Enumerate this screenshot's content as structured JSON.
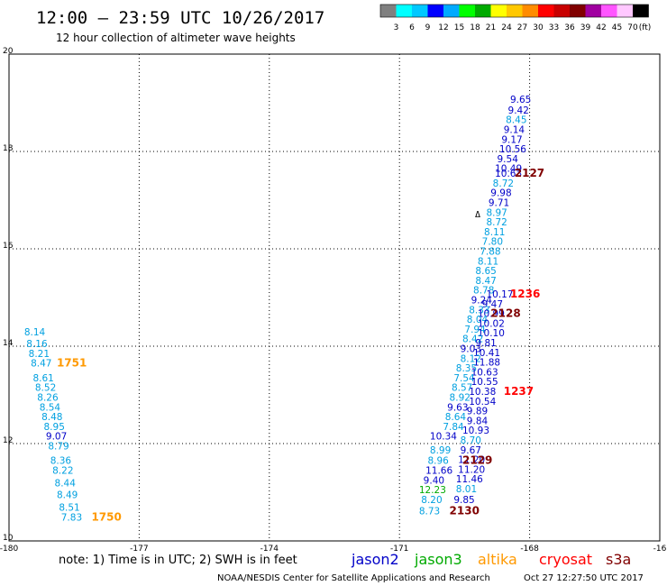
{
  "header": {
    "title": "12:00 – 23:59 UTC 10/26/2017",
    "subtitle": "12 hour collection of altimeter wave heights"
  },
  "color_scale": {
    "colors": [
      "#808080",
      "#00ffff",
      "#00c8ff",
      "#0000ff",
      "#00aaff",
      "#00ff00",
      "#00aa00",
      "#ffff00",
      "#ffc800",
      "#ff8c00",
      "#ff0000",
      "#c80000",
      "#800000",
      "#a000a0",
      "#ff55ff",
      "#ffc8ff",
      "#000000"
    ],
    "labels": [
      "3",
      "6",
      "9",
      "12",
      "15",
      "18",
      "21",
      "24",
      "27",
      "30",
      "33",
      "36",
      "39",
      "42",
      "45",
      "70"
    ],
    "unit": "(ft)"
  },
  "footer": {
    "note": "note: 1) Time is in UTC; 2) SWH is in feet",
    "credit": "NOAA/NESDIS Center for Satellite Applications and Research",
    "timestamp": "Oct 27 12:27:50 UTC 2017",
    "satellites": [
      {
        "name": "jason2",
        "color": "#0000c8"
      },
      {
        "name": "jason3",
        "color": "#00aa00"
      },
      {
        "name": "altika",
        "color": "#ff9900"
      },
      {
        "name": "cryosat",
        "color": "#ff0000"
      },
      {
        "name": "s3a",
        "color": "#800000"
      }
    ]
  },
  "chart_data": {
    "type": "scatter",
    "title": "12:00 – 23:59 UTC 10/26/2017",
    "subtitle": "12 hour collection of altimeter wave heights",
    "xlim": [
      -180,
      -165
    ],
    "ylim": [
      10,
      20
    ],
    "xticks": [
      "-180",
      "-177",
      "-174",
      "-171",
      "-168",
      "-16"
    ],
    "yticks": [
      "10",
      "12",
      "14",
      "16",
      "18",
      "20"
    ],
    "grid": true,
    "series": [
      {
        "name": "jason2",
        "color": "#0000c8",
        "points": [
          {
            "x": -168.45,
            "y": 19.0,
            "label": "9.65"
          },
          {
            "x": -168.5,
            "y": 18.78,
            "label": "9.42"
          },
          {
            "x": -168.55,
            "y": 18.58,
            "label": "8.45"
          },
          {
            "x": -168.6,
            "y": 18.38,
            "label": "9.14"
          },
          {
            "x": -168.65,
            "y": 18.18,
            "label": "9.17"
          },
          {
            "x": -168.7,
            "y": 17.98,
            "label": "10.56"
          },
          {
            "x": -168.75,
            "y": 17.78,
            "label": "9.54"
          },
          {
            "x": -168.8,
            "y": 17.58,
            "label": "10.49"
          },
          {
            "x": -168.8,
            "y": 17.48,
            "label": "10.63"
          },
          {
            "x": -168.85,
            "y": 17.28,
            "label": "8.72"
          },
          {
            "x": -168.9,
            "y": 17.08,
            "label": "9.98"
          },
          {
            "x": -168.95,
            "y": 16.88,
            "label": "9.71"
          },
          {
            "x": -169.0,
            "y": 16.68,
            "label": "8.97"
          },
          {
            "x": -169.0,
            "y": 16.48,
            "label": "8.72"
          },
          {
            "x": -169.05,
            "y": 16.28,
            "label": "8.11"
          },
          {
            "x": -169.1,
            "y": 16.08,
            "label": "7.80"
          },
          {
            "x": -169.15,
            "y": 15.88,
            "label": "7.88"
          },
          {
            "x": -169.2,
            "y": 15.68,
            "label": "8.11"
          },
          {
            "x": -169.25,
            "y": 15.48,
            "label": "8.65"
          },
          {
            "x": -169.25,
            "y": 15.28,
            "label": "8.47"
          },
          {
            "x": -169.3,
            "y": 15.08,
            "label": "8.78"
          },
          {
            "x": -169.0,
            "y": 15.0,
            "label": "10.17"
          },
          {
            "x": -169.35,
            "y": 14.88,
            "label": "9.24"
          },
          {
            "x": -169.1,
            "y": 14.8,
            "label": "9.47"
          },
          {
            "x": -169.4,
            "y": 14.68,
            "label": "8.33"
          },
          {
            "x": -169.2,
            "y": 14.6,
            "label": "10.99"
          },
          {
            "x": -169.45,
            "y": 14.48,
            "label": "8.04"
          },
          {
            "x": -169.2,
            "y": 14.4,
            "label": "10.02"
          },
          {
            "x": -169.5,
            "y": 14.28,
            "label": "7.94"
          },
          {
            "x": -169.2,
            "y": 14.2,
            "label": "10.10"
          },
          {
            "x": -169.55,
            "y": 14.08,
            "label": "8.42"
          },
          {
            "x": -169.25,
            "y": 14.0,
            "label": "9.81"
          },
          {
            "x": -169.6,
            "y": 13.88,
            "label": "9.03"
          },
          {
            "x": -169.3,
            "y": 13.8,
            "label": "10.41"
          },
          {
            "x": -169.6,
            "y": 13.68,
            "label": "8.12"
          },
          {
            "x": -169.3,
            "y": 13.6,
            "label": "11.88"
          },
          {
            "x": -169.7,
            "y": 13.48,
            "label": "8.35"
          },
          {
            "x": -169.35,
            "y": 13.4,
            "label": "10.63"
          },
          {
            "x": -169.75,
            "y": 13.28,
            "label": "7.54"
          },
          {
            "x": -169.35,
            "y": 13.2,
            "label": "10.55"
          },
          {
            "x": -169.8,
            "y": 13.08,
            "label": "8.57"
          },
          {
            "x": -169.4,
            "y": 13.0,
            "label": "10.38"
          },
          {
            "x": -169.85,
            "y": 12.88,
            "label": "8.92"
          },
          {
            "x": -169.4,
            "y": 12.8,
            "label": "10.54"
          },
          {
            "x": -169.9,
            "y": 12.68,
            "label": "9.63"
          },
          {
            "x": -169.45,
            "y": 12.6,
            "label": "9.89"
          },
          {
            "x": -169.95,
            "y": 12.48,
            "label": "8.64"
          },
          {
            "x": -169.45,
            "y": 12.4,
            "label": "9.84"
          },
          {
            "x": -170.0,
            "y": 12.28,
            "label": "7.84"
          },
          {
            "x": -169.55,
            "y": 12.2,
            "label": "10.93"
          },
          {
            "x": -170.3,
            "y": 12.08,
            "label": "10.34"
          },
          {
            "x": -169.6,
            "y": 12.0,
            "label": "8.70"
          },
          {
            "x": -170.3,
            "y": 11.8,
            "label": "8.99"
          },
          {
            "x": -169.6,
            "y": 11.8,
            "label": "9.67"
          },
          {
            "x": -170.35,
            "y": 11.58,
            "label": "8.96"
          },
          {
            "x": -169.65,
            "y": 11.6,
            "label": "11.20"
          },
          {
            "x": -170.4,
            "y": 11.38,
            "label": "11.66"
          },
          {
            "x": -169.65,
            "y": 11.4,
            "label": "11.20"
          },
          {
            "x": -170.45,
            "y": 11.18,
            "label": "9.40"
          },
          {
            "x": -169.7,
            "y": 11.2,
            "label": "11.46"
          },
          {
            "x": -169.7,
            "y": 11.0,
            "label": "8.01"
          },
          {
            "x": -169.75,
            "y": 10.78,
            "label": "9.85"
          },
          {
            "x": -170.5,
            "y": 10.78,
            "label": "8.20"
          },
          {
            "x": -170.55,
            "y": 10.55,
            "label": "8.73"
          },
          {
            "x": -179.65,
            "y": 14.22,
            "label": "8.14"
          },
          {
            "x": -179.6,
            "y": 13.98,
            "label": "8.16"
          },
          {
            "x": -179.55,
            "y": 13.78,
            "label": "8.21"
          },
          {
            "x": -179.5,
            "y": 13.58,
            "label": "8.47"
          },
          {
            "x": -179.45,
            "y": 13.28,
            "label": "8.61"
          },
          {
            "x": -179.4,
            "y": 13.08,
            "label": "8.52"
          },
          {
            "x": -179.35,
            "y": 12.88,
            "label": "8.26"
          },
          {
            "x": -179.3,
            "y": 12.68,
            "label": "8.54"
          },
          {
            "x": -179.25,
            "y": 12.48,
            "label": "8.48"
          },
          {
            "x": -179.2,
            "y": 12.28,
            "label": "8.95"
          },
          {
            "x": -179.15,
            "y": 12.08,
            "label": "9.07"
          },
          {
            "x": -179.1,
            "y": 11.88,
            "label": "8.79"
          },
          {
            "x": -179.05,
            "y": 11.58,
            "label": "8.36"
          },
          {
            "x": -179.0,
            "y": 11.38,
            "label": "8.22"
          },
          {
            "x": -178.95,
            "y": 11.12,
            "label": "8.44"
          },
          {
            "x": -178.9,
            "y": 10.88,
            "label": "8.49"
          },
          {
            "x": -178.85,
            "y": 10.62,
            "label": "8.51"
          },
          {
            "x": -178.8,
            "y": 10.42,
            "label": "7.83"
          }
        ]
      },
      {
        "name": "jason3",
        "color": "#00aa00",
        "points": [
          {
            "x": -170.55,
            "y": 10.98,
            "label": "12.23"
          }
        ]
      },
      {
        "name": "altika",
        "color": "#ff9900",
        "points": [
          {
            "x": -178.9,
            "y": 13.58,
            "label": "1751"
          },
          {
            "x": -178.1,
            "y": 10.42,
            "label": "1750"
          }
        ]
      },
      {
        "name": "cryosat",
        "color": "#ff0000",
        "points": [
          {
            "x": -168.45,
            "y": 15.0,
            "label": "1236"
          },
          {
            "x": -168.6,
            "y": 13.0,
            "label": "1237"
          }
        ]
      },
      {
        "name": "s3a",
        "color": "#800000",
        "points": [
          {
            "x": -168.35,
            "y": 17.48,
            "label": "2127"
          },
          {
            "x": -168.9,
            "y": 14.6,
            "label": "2128"
          },
          {
            "x": -169.55,
            "y": 11.58,
            "label": "2129"
          },
          {
            "x": -169.85,
            "y": 10.55,
            "label": "2130"
          }
        ]
      }
    ]
  }
}
